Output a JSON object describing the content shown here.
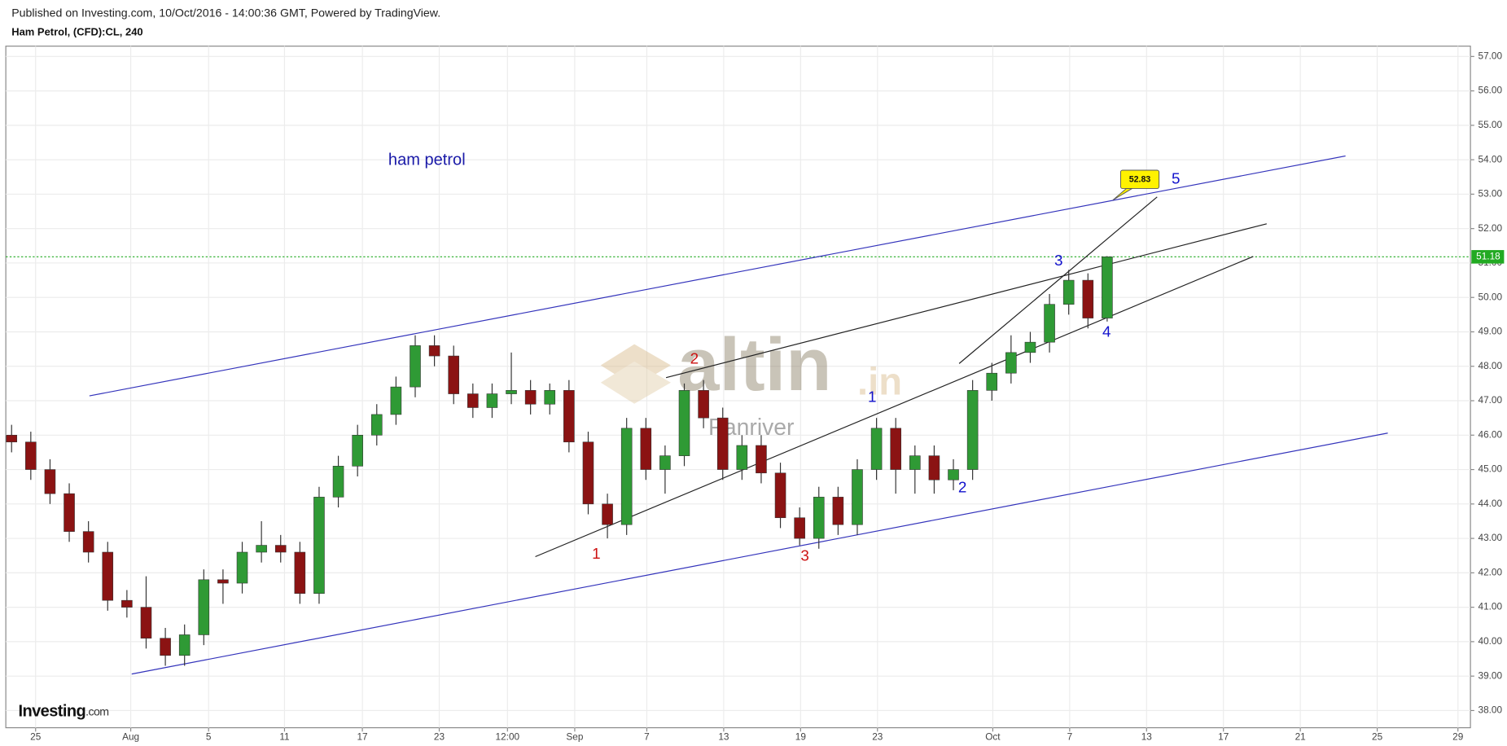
{
  "header": {
    "published": "Published on Investing.com, 10/Oct/2016 - 14:00:36 GMT, Powered by TradingView.",
    "symbol": "Ham Petrol, (CFD):CL, 240"
  },
  "chart_data": {
    "type": "candlestick",
    "annotation": "ham petrol",
    "watermark": {
      "brand": "altin",
      "suffix": ".in",
      "sub": "Panriver"
    },
    "logo": {
      "name": "Investing",
      "suffix": ".com"
    },
    "up_color": "#2f9a35",
    "down_color": "#8b1313",
    "grid": true,
    "x": [
      0,
      1,
      2,
      3,
      4,
      5,
      6,
      7,
      8,
      9,
      10,
      11,
      12,
      13,
      14,
      15,
      16,
      17,
      18,
      19,
      20,
      21,
      22,
      23,
      24,
      25,
      26,
      27,
      28,
      29,
      30,
      31,
      32,
      33,
      34,
      35,
      36,
      37,
      38,
      39,
      40,
      41,
      42,
      43,
      44,
      45,
      46,
      47,
      48,
      49,
      50,
      51,
      52,
      53,
      54,
      55,
      56,
      57
    ],
    "open": [
      46.0,
      45.8,
      45.0,
      44.3,
      43.2,
      42.6,
      41.2,
      41.0,
      40.1,
      39.6,
      40.2,
      41.8,
      41.7,
      42.6,
      42.8,
      42.6,
      41.4,
      44.2,
      45.1,
      46.0,
      46.6,
      47.4,
      48.6,
      48.3,
      47.2,
      46.8,
      47.2,
      47.3,
      46.9,
      47.3,
      45.8,
      44.0,
      43.4,
      46.2,
      45.0,
      45.4,
      47.3,
      46.5,
      45.0,
      45.7,
      44.9,
      43.6,
      43.0,
      44.2,
      43.4,
      45.0,
      46.2,
      45.0,
      45.4,
      44.7,
      45.0,
      47.3,
      47.8,
      48.4,
      48.7,
      49.8,
      50.5,
      49.4
    ],
    "high": [
      46.3,
      46.1,
      45.3,
      44.6,
      43.5,
      42.9,
      41.5,
      41.9,
      40.4,
      40.5,
      42.1,
      42.1,
      42.9,
      43.5,
      43.1,
      42.9,
      44.5,
      45.4,
      46.3,
      46.9,
      47.7,
      48.9,
      48.9,
      48.6,
      47.5,
      47.5,
      48.4,
      47.6,
      47.5,
      47.6,
      46.1,
      44.3,
      46.5,
      46.5,
      45.7,
      47.5,
      47.6,
      46.8,
      46.0,
      46.0,
      45.2,
      43.9,
      44.5,
      44.5,
      45.3,
      46.5,
      46.5,
      45.7,
      45.7,
      45.3,
      47.6,
      48.1,
      48.9,
      49.0,
      50.1,
      50.8,
      50.7,
      51.2
    ],
    "low": [
      45.5,
      44.7,
      44.0,
      42.9,
      42.3,
      40.9,
      40.7,
      39.8,
      39.3,
      39.3,
      39.9,
      41.1,
      41.4,
      42.3,
      42.3,
      41.1,
      41.1,
      43.9,
      44.8,
      45.7,
      46.3,
      47.1,
      48.0,
      46.9,
      46.5,
      46.5,
      46.9,
      46.6,
      46.6,
      45.5,
      43.7,
      43.0,
      43.1,
      44.7,
      44.3,
      45.1,
      46.2,
      44.7,
      44.7,
      44.6,
      43.3,
      42.8,
      42.7,
      43.1,
      43.1,
      44.7,
      44.3,
      44.3,
      44.3,
      44.4,
      44.7,
      47.0,
      47.5,
      48.1,
      48.4,
      49.5,
      49.1,
      49.3
    ],
    "close": [
      45.8,
      45.0,
      44.3,
      43.2,
      42.6,
      41.2,
      41.0,
      40.1,
      39.6,
      40.2,
      41.8,
      41.7,
      42.6,
      42.8,
      42.6,
      41.4,
      44.2,
      45.1,
      46.0,
      46.6,
      47.4,
      48.6,
      48.3,
      47.2,
      46.8,
      47.2,
      47.3,
      46.9,
      47.3,
      45.8,
      44.0,
      43.4,
      46.2,
      45.0,
      45.4,
      47.3,
      46.5,
      45.0,
      45.7,
      44.9,
      43.6,
      43.0,
      44.2,
      43.4,
      45.0,
      46.2,
      45.0,
      45.4,
      44.7,
      45.0,
      47.3,
      47.8,
      48.4,
      48.7,
      49.8,
      50.5,
      49.4,
      51.18
    ],
    "xlim": [
      -0.3,
      75.9
    ],
    "xticks": [
      {
        "value": 1.25,
        "label": "25"
      },
      {
        "value": 6.2,
        "label": "Aug"
      },
      {
        "value": 10.25,
        "label": "5"
      },
      {
        "value": 14.2,
        "label": "11"
      },
      {
        "value": 18.25,
        "label": "17"
      },
      {
        "value": 22.25,
        "label": "23"
      },
      {
        "value": 25.8,
        "label": "12:00"
      },
      {
        "value": 29.3,
        "label": "Sep"
      },
      {
        "value": 33.05,
        "label": "7"
      },
      {
        "value": 37.05,
        "label": "13"
      },
      {
        "value": 41.05,
        "label": "19"
      },
      {
        "value": 45.05,
        "label": "23"
      },
      {
        "value": 51.05,
        "label": "Oct"
      },
      {
        "value": 55.05,
        "label": "7"
      },
      {
        "value": 59.05,
        "label": "13"
      },
      {
        "value": 63.05,
        "label": "17"
      },
      {
        "value": 67.05,
        "label": "21"
      },
      {
        "value": 71.05,
        "label": "25"
      },
      {
        "value": 75.25,
        "label": "29"
      }
    ],
    "ylim": [
      37.5,
      57.3
    ],
    "yticks": [
      {
        "value": 38,
        "label": "38.00"
      },
      {
        "value": 39,
        "label": "39.00"
      },
      {
        "value": 40,
        "label": "40.00"
      },
      {
        "value": 41,
        "label": "41.00"
      },
      {
        "value": 42,
        "label": "42.00"
      },
      {
        "value": 43,
        "label": "43.00"
      },
      {
        "value": 44,
        "label": "44.00"
      },
      {
        "value": 45,
        "label": "45.00"
      },
      {
        "value": 46,
        "label": "46.00"
      },
      {
        "value": 47,
        "label": "47.00"
      },
      {
        "value": 48,
        "label": "48.00"
      },
      {
        "value": 49,
        "label": "49.00"
      },
      {
        "value": 50,
        "label": "50.00"
      },
      {
        "value": 51,
        "label": "51.00"
      },
      {
        "value": 52,
        "label": "52.00"
      },
      {
        "value": 53,
        "label": "53.00"
      },
      {
        "value": 54,
        "label": "54.00"
      },
      {
        "value": 55,
        "label": "55.00"
      },
      {
        "value": 56,
        "label": "56.00"
      },
      {
        "value": 57,
        "label": "57.00"
      }
    ],
    "trendlines": [
      {
        "color": "#3333bb",
        "x": [
          4.05,
          69.4
        ],
        "y": [
          47.14,
          54.11
        ]
      },
      {
        "color": "#3333bb",
        "x": [
          6.25,
          71.6
        ],
        "y": [
          39.06,
          46.06
        ]
      },
      {
        "color": "#222222",
        "x": [
          27.25,
          64.6
        ],
        "y": [
          42.47,
          51.19
        ]
      },
      {
        "color": "#222222",
        "x": [
          34.05,
          65.3
        ],
        "y": [
          47.67,
          52.14
        ]
      },
      {
        "color": "#222222",
        "x": [
          49.3,
          59.6
        ],
        "y": [
          48.08,
          52.92
        ]
      }
    ],
    "last_price": {
      "value": 51.18,
      "label": "51.18",
      "color": "#22aa22"
    },
    "callout": {
      "x": 57.3,
      "value": 52.83,
      "label": "52.83"
    },
    "waves": [
      {
        "label": "1",
        "color": "#cc1111"
      },
      {
        "label": "2",
        "color": "#cc1111"
      },
      {
        "label": "3",
        "color": "#cc1111"
      },
      {
        "label": "1",
        "color": "#1111cc"
      },
      {
        "label": "2",
        "color": "#1111cc"
      },
      {
        "label": "3",
        "color": "#1111cc"
      },
      {
        "label": "4",
        "color": "#1111cc"
      },
      {
        "label": "5",
        "color": "#1111cc"
      }
    ]
  }
}
